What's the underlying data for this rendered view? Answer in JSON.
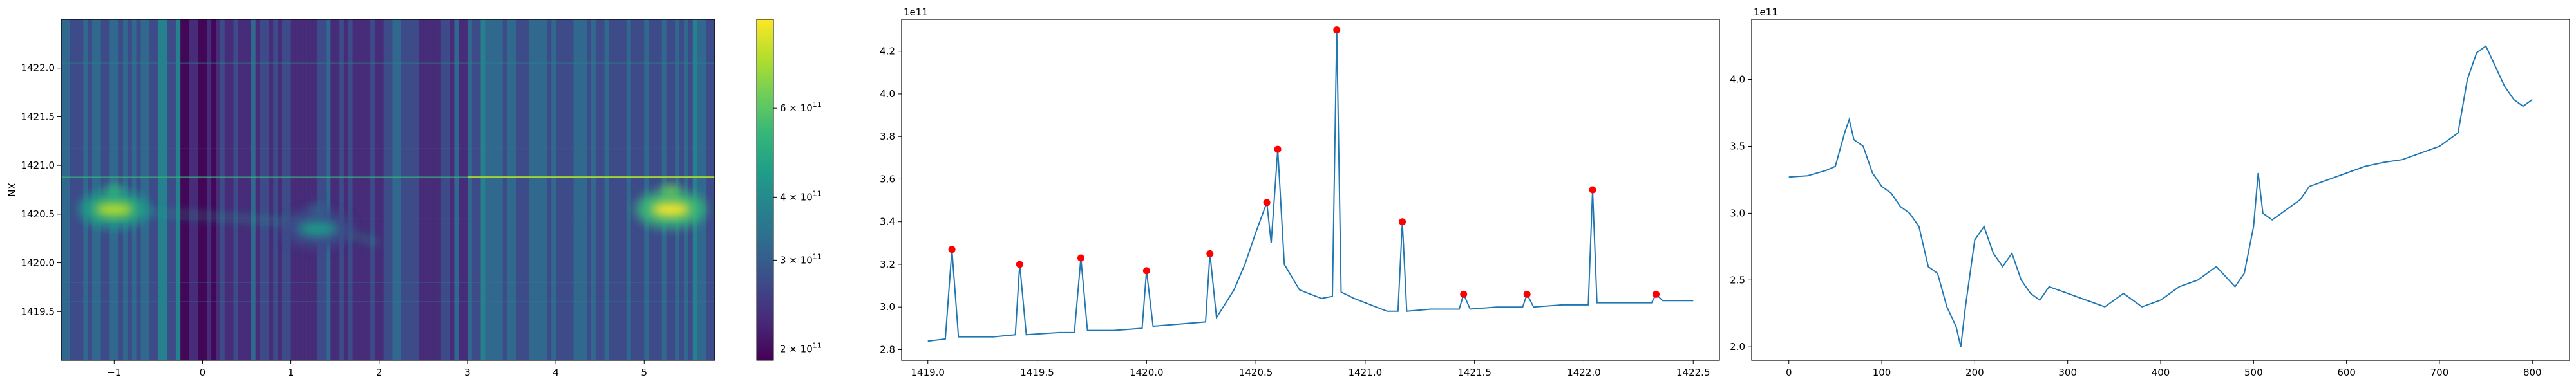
{
  "chart_data": [
    {
      "type": "heatmap",
      "title": "",
      "xlabel": "",
      "ylabel": "NX",
      "xlim": [
        -1.6,
        5.8
      ],
      "ylim": [
        1419.0,
        1422.5
      ],
      "x_ticks": [
        -1,
        0,
        1,
        2,
        3,
        4,
        5
      ],
      "x_tick_labels": [
        "−1",
        "0",
        "1",
        "2",
        "3",
        "4",
        "5"
      ],
      "y_ticks": [
        1419.5,
        1420.0,
        1420.5,
        1421.0,
        1421.5,
        1422.0
      ],
      "y_tick_labels": [
        "1419.5",
        "1420.0",
        "1420.5",
        "1421.0",
        "1421.5",
        "1422.0"
      ],
      "colormap": "viridis",
      "features": {
        "dark_bands_x": [
          [
            -0.25,
            0.15
          ]
        ],
        "horizontal_line_y": 1420.88,
        "bright_spots": [
          {
            "x": -1.0,
            "y": 1420.55,
            "intensity": 0.9
          },
          {
            "x": 5.3,
            "y": 1420.55,
            "intensity": 1.0
          },
          {
            "x": 1.3,
            "y": 1420.35,
            "intensity": 0.55
          }
        ]
      },
      "colorbar": {
        "scale": "log",
        "range": [
          190000000000.0,
          900000000000.0
        ],
        "tick_values": [
          200000000000.0,
          300000000000.0,
          400000000000.0,
          600000000000.0
        ],
        "tick_labels": [
          {
            "mantissa": "2",
            "exp": "11"
          },
          {
            "mantissa": "3",
            "exp": "11"
          },
          {
            "mantissa": "4",
            "exp": "11"
          },
          {
            "mantissa": "6",
            "exp": "11"
          }
        ],
        "colors": [
          "#440154",
          "#482878",
          "#3e4989",
          "#31688e",
          "#26828e",
          "#1f9e89",
          "#35b779",
          "#6ece58",
          "#b5de2b",
          "#fde725"
        ]
      }
    },
    {
      "type": "line",
      "title": "",
      "xlabel": "",
      "ylabel": "",
      "offset_text": "1e11",
      "xlim": [
        1418.88,
        1422.62
      ],
      "ylim": [
        2.75,
        4.35
      ],
      "x_ticks": [
        1419.0,
        1419.5,
        1420.0,
        1420.5,
        1421.0,
        1421.5,
        1422.0,
        1422.5
      ],
      "x_tick_labels": [
        "1419.0",
        "1419.5",
        "1420.0",
        "1420.5",
        "1421.0",
        "1421.5",
        "1422.0",
        "1422.5"
      ],
      "y_ticks": [
        2.8,
        3.0,
        3.2,
        3.4,
        3.6,
        3.8,
        4.0,
        4.2
      ],
      "y_tick_labels": [
        "2.8",
        "3.0",
        "3.2",
        "3.4",
        "3.6",
        "3.8",
        "4.0",
        "4.2"
      ],
      "line_color": "#1f77b4",
      "marker_color": "#ff0000",
      "series": [
        {
          "x": [
            1419.0,
            1419.08,
            1419.11,
            1419.14,
            1419.3,
            1419.4,
            1419.42,
            1419.45,
            1419.6,
            1419.67,
            1419.7,
            1419.73,
            1419.85,
            1419.98,
            1420.0,
            1420.03,
            1420.15,
            1420.27,
            1420.29,
            1420.32,
            1420.4,
            1420.45,
            1420.5,
            1420.55,
            1420.57,
            1420.6,
            1420.63,
            1420.7,
            1420.8,
            1420.85,
            1420.87,
            1420.89,
            1420.95,
            1421.0,
            1421.1,
            1421.15,
            1421.17,
            1421.19,
            1421.3,
            1421.43,
            1421.45,
            1421.48,
            1421.6,
            1421.72,
            1421.74,
            1421.77,
            1421.9,
            1422.02,
            1422.04,
            1422.06,
            1422.2,
            1422.31,
            1422.33,
            1422.36,
            1422.5
          ],
          "y": [
            2.84,
            2.85,
            3.27,
            2.86,
            2.86,
            2.87,
            3.2,
            2.87,
            2.88,
            2.88,
            3.23,
            2.89,
            2.89,
            2.9,
            3.17,
            2.91,
            2.92,
            2.93,
            3.25,
            2.95,
            3.08,
            3.2,
            3.35,
            3.49,
            3.3,
            3.74,
            3.2,
            3.08,
            3.04,
            3.05,
            4.3,
            3.07,
            3.04,
            3.02,
            2.98,
            2.98,
            3.4,
            2.98,
            2.99,
            2.99,
            3.06,
            2.99,
            3.0,
            3.0,
            3.06,
            3.0,
            3.01,
            3.01,
            3.55,
            3.02,
            3.02,
            3.02,
            3.06,
            3.03,
            3.03
          ]
        }
      ],
      "peaks": [
        {
          "x": 1419.11,
          "y": 3.27
        },
        {
          "x": 1419.42,
          "y": 3.2
        },
        {
          "x": 1419.7,
          "y": 3.23
        },
        {
          "x": 1420.0,
          "y": 3.17
        },
        {
          "x": 1420.29,
          "y": 3.25
        },
        {
          "x": 1420.55,
          "y": 3.49
        },
        {
          "x": 1420.6,
          "y": 3.74
        },
        {
          "x": 1420.87,
          "y": 4.3
        },
        {
          "x": 1421.17,
          "y": 3.4
        },
        {
          "x": 1421.45,
          "y": 3.06
        },
        {
          "x": 1421.74,
          "y": 3.06
        },
        {
          "x": 1422.04,
          "y": 3.55
        },
        {
          "x": 1422.33,
          "y": 3.06
        }
      ]
    },
    {
      "type": "line",
      "title": "",
      "xlabel": "",
      "ylabel": "",
      "offset_text": "1e11",
      "xlim": [
        -40,
        840
      ],
      "ylim": [
        1.9,
        4.45
      ],
      "x_ticks": [
        0,
        100,
        200,
        300,
        400,
        500,
        600,
        700,
        800
      ],
      "x_tick_labels": [
        "0",
        "100",
        "200",
        "300",
        "400",
        "500",
        "600",
        "700",
        "800"
      ],
      "y_ticks": [
        2.0,
        2.5,
        3.0,
        3.5,
        4.0
      ],
      "y_tick_labels": [
        "2.0",
        "2.5",
        "3.0",
        "3.5",
        "4.0"
      ],
      "line_color": "#1f77b4",
      "series": [
        {
          "x": [
            0,
            20,
            40,
            50,
            60,
            65,
            70,
            80,
            90,
            100,
            110,
            120,
            130,
            140,
            150,
            160,
            170,
            180,
            185,
            190,
            200,
            210,
            220,
            230,
            240,
            250,
            260,
            270,
            280,
            300,
            320,
            340,
            360,
            380,
            400,
            420,
            440,
            460,
            480,
            490,
            500,
            505,
            510,
            520,
            530,
            540,
            550,
            560,
            580,
            600,
            620,
            640,
            660,
            680,
            700,
            710,
            720,
            730,
            740,
            750,
            760,
            770,
            780,
            790,
            800
          ],
          "y": [
            3.27,
            3.28,
            3.32,
            3.35,
            3.6,
            3.7,
            3.55,
            3.5,
            3.3,
            3.2,
            3.15,
            3.05,
            3.0,
            2.9,
            2.6,
            2.55,
            2.3,
            2.15,
            2.0,
            2.3,
            2.8,
            2.9,
            2.7,
            2.6,
            2.7,
            2.5,
            2.4,
            2.35,
            2.45,
            2.4,
            2.35,
            2.3,
            2.4,
            2.3,
            2.35,
            2.45,
            2.5,
            2.6,
            2.45,
            2.55,
            2.9,
            3.3,
            3.0,
            2.95,
            3.0,
            3.05,
            3.1,
            3.2,
            3.25,
            3.3,
            3.35,
            3.38,
            3.4,
            3.45,
            3.5,
            3.55,
            3.6,
            4.0,
            4.2,
            4.25,
            4.1,
            3.95,
            3.85,
            3.8,
            3.85
          ]
        }
      ]
    }
  ]
}
